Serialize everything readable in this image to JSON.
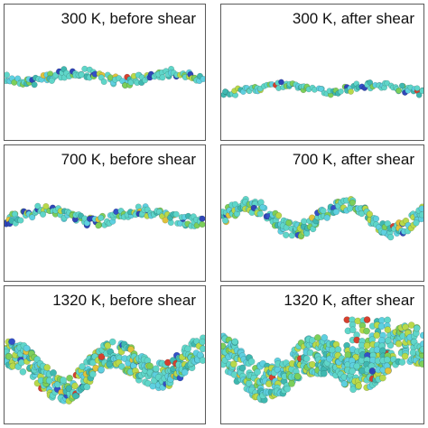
{
  "panels": [
    {
      "label": "300 K, before shear",
      "temperature_K": 300,
      "state": "before shear",
      "disorder": "low"
    },
    {
      "label": "300 K, after shear",
      "temperature_K": 300,
      "state": "after shear",
      "disorder": "low"
    },
    {
      "label": "700 K, before shear",
      "temperature_K": 700,
      "state": "before shear",
      "disorder": "low"
    },
    {
      "label": "700 K, after shear",
      "temperature_K": 700,
      "state": "after shear",
      "disorder": "medium"
    },
    {
      "label": "1320 K, before shear",
      "temperature_K": 1320,
      "state": "before shear",
      "disorder": "high"
    },
    {
      "label": "1320 K, after shear",
      "temperature_K": 1320,
      "state": "after shear",
      "disorder": "very-high"
    }
  ],
  "atom_colors": [
    "#5fd6c9",
    "#5ed0e0",
    "#3fb8b0",
    "#7ccf5a",
    "#b8d94a",
    "#2f46b8",
    "#3350c8",
    "#e0c23a",
    "#d6402e"
  ]
}
